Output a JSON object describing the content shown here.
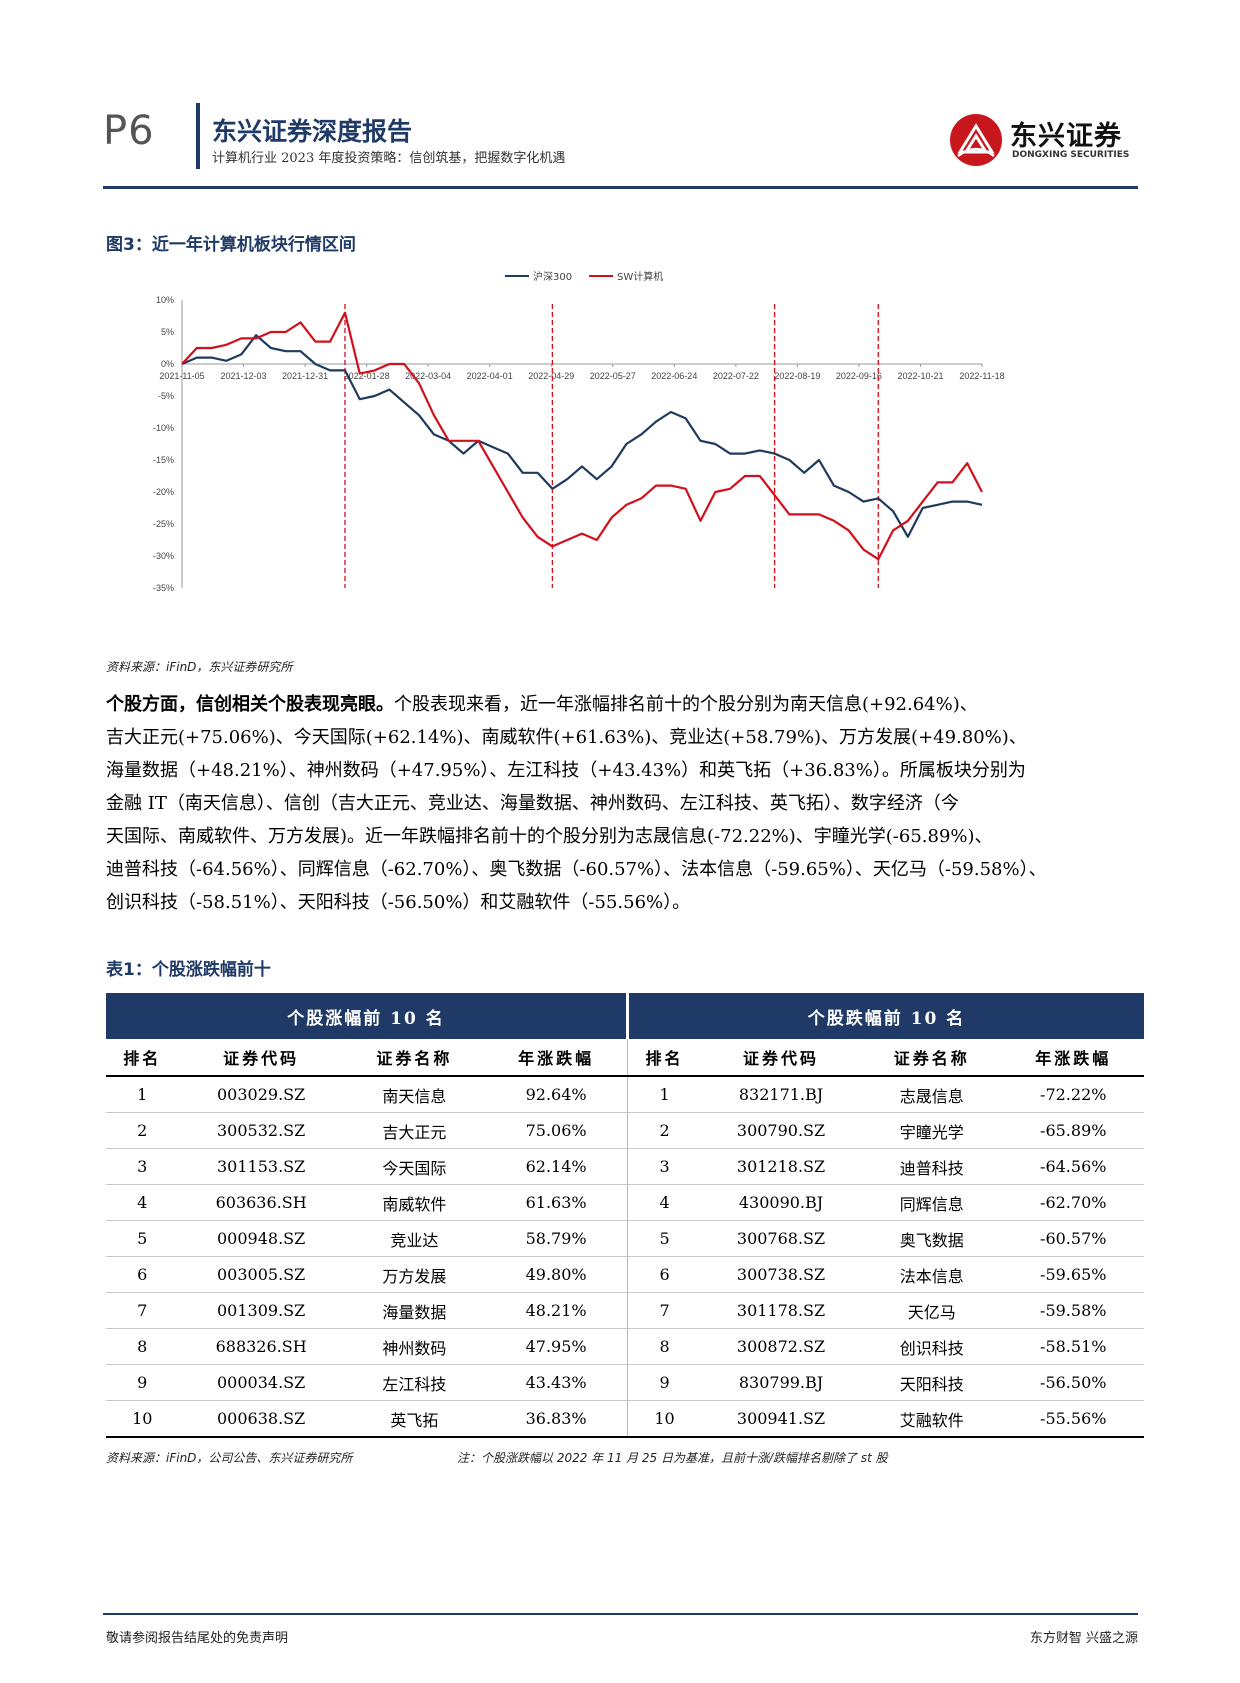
{
  "header": {
    "page_num": "P6",
    "title": "东兴证券深度报告",
    "subtitle": "计算机行业 2023 年度投资策略：信创筑基，把握数字化机遇",
    "logo_text": "东兴证券",
    "logo_en": "DONGXING SECURITIES",
    "brand_color": "#1f3a66",
    "logo_color": "#c8161d"
  },
  "figure": {
    "caption": "图3：近一年计算机板块行情区间",
    "source": "资料来源：iFinD，东兴证券研究所"
  },
  "chart_data": {
    "type": "line",
    "legend_position": "top-center",
    "series": [
      {
        "name": "沪深300",
        "color": "#1f3a5f",
        "values": [
          0,
          1,
          1,
          0.5,
          1.5,
          4.5,
          2.5,
          2,
          2,
          0,
          -1,
          -1,
          -5.5,
          -5,
          -4,
          -6,
          -8,
          -11,
          -12,
          -14,
          -12,
          -13,
          -14,
          -17,
          -17,
          -19.5,
          -18,
          -16,
          -18,
          -16,
          -12.5,
          -11,
          -9,
          -7.5,
          -8.5,
          -12,
          -12.5,
          -14,
          -14,
          -13.5,
          -14,
          -15,
          -17,
          -15,
          -19,
          -20,
          -21.5,
          -21,
          -23,
          -27,
          -22.5,
          -22,
          -21.5,
          -21.5,
          -22
        ]
      },
      {
        "name": "SW计算机",
        "color": "#d0101b",
        "values": [
          0,
          2.5,
          2.5,
          3,
          4,
          4,
          5,
          5,
          6.5,
          3.5,
          3.5,
          8,
          -1.5,
          -1,
          0,
          0,
          -3,
          -8,
          -12,
          -12,
          -12,
          -16,
          -20,
          -24,
          -27,
          -28.5,
          -27.5,
          -26.5,
          -27.5,
          -24,
          -22,
          -21,
          -19,
          -19,
          -19.5,
          -24.5,
          -20,
          -19.5,
          -17.5,
          -17.5,
          -20.5,
          -23.5,
          -23.5,
          -23.5,
          -24.5,
          -26,
          -29,
          -30.5,
          -26,
          -24.5,
          -21.5,
          -18.5,
          -18.5,
          -15.5,
          -20
        ]
      }
    ],
    "x_tick_labels": [
      "2021-11-05",
      "2021-12-03",
      "2021-12-31",
      "2022-01-28",
      "2022-03-04",
      "2022-04-01",
      "2022-04-29",
      "2022-05-27",
      "2022-06-24",
      "2022-07-22",
      "2022-08-19",
      "2022-09-16",
      "2022-10-21",
      "2022-11-18"
    ],
    "y_tick_labels": [
      "10%",
      "5%",
      "0%",
      "-5%",
      "-10%",
      "-15%",
      "-20%",
      "-25%",
      "-30%",
      "-35%"
    ],
    "ylim": [
      -35,
      10
    ],
    "marker_lines_at_point_index": [
      11,
      25,
      40,
      47
    ],
    "marker_line_color": "#d0101b",
    "grid": false
  },
  "body": {
    "lead": "个股方面，信创相关个股表现亮眼。",
    "lines": [
      "个股表现来看，近一年涨幅排名前十的个股分别为南天信息(+92.64%)、",
      "吉大正元(+75.06%)、今天国际(+62.14%)、南威软件(+61.63%)、竞业达(+58.79%)、万方发展(+49.80%)、",
      "海量数据（+48.21%）、神州数码（+47.95%）、左江科技（+43.43%）和英飞拓（+36.83%）。所属板块分别为",
      "金融 IT（南天信息）、信创（吉大正元、竞业达、海量数据、神州数码、左江科技、英飞拓）、数字经济（今",
      "天国际、南威软件、万方发展)。近一年跌幅排名前十的个股分别为志晟信息(-72.22%)、宇瞳光学(-65.89%)、",
      "迪普科技（-64.56%）、同辉信息（-62.70%）、奥飞数据（-60.57%）、法本信息（-59.65%）、天亿马（-59.58%）、",
      "创识科技（-58.51%）、天阳科技（-56.50%）和艾融软件（-55.56%）。"
    ]
  },
  "table": {
    "caption": "表1：个股涨跌幅前十",
    "group_left": "个股涨幅前 10 名",
    "group_right": "个股跌幅前 10 名",
    "columns": [
      "排名",
      "证券代码",
      "证券名称",
      "年涨跌幅",
      "排名",
      "证券代码",
      "证券名称",
      "年涨跌幅"
    ],
    "rows": [
      [
        "1",
        "003029.SZ",
        "南天信息",
        "92.64%",
        "1",
        "832171.BJ",
        "志晟信息",
        "-72.22%"
      ],
      [
        "2",
        "300532.SZ",
        "吉大正元",
        "75.06%",
        "2",
        "300790.SZ",
        "宇瞳光学",
        "-65.89%"
      ],
      [
        "3",
        "301153.SZ",
        "今天国际",
        "62.14%",
        "3",
        "301218.SZ",
        "迪普科技",
        "-64.56%"
      ],
      [
        "4",
        "603636.SH",
        "南威软件",
        "61.63%",
        "4",
        "430090.BJ",
        "同辉信息",
        "-62.70%"
      ],
      [
        "5",
        "000948.SZ",
        "竞业达",
        "58.79%",
        "5",
        "300768.SZ",
        "奥飞数据",
        "-60.57%"
      ],
      [
        "6",
        "003005.SZ",
        "万方发展",
        "49.80%",
        "6",
        "300738.SZ",
        "法本信息",
        "-59.65%"
      ],
      [
        "7",
        "001309.SZ",
        "海量数据",
        "48.21%",
        "7",
        "301178.SZ",
        "天亿马",
        "-59.58%"
      ],
      [
        "8",
        "688326.SH",
        "神州数码",
        "47.95%",
        "8",
        "300872.SZ",
        "创识科技",
        "-58.51%"
      ],
      [
        "9",
        "000034.SZ",
        "左江科技",
        "43.43%",
        "9",
        "830799.BJ",
        "天阳科技",
        "-56.50%"
      ],
      [
        "10",
        "000638.SZ",
        "英飞拓",
        "36.83%",
        "10",
        "300941.SZ",
        "艾融软件",
        "-55.56%"
      ]
    ],
    "source": "资料来源：iFinD，公司公告、东兴证券研究所",
    "note": "注：个股涨跌幅以 2022 年 11 月 25 日为基准，且前十涨/跌幅排名剔除了 st 股"
  },
  "footer": {
    "left": "敬请参阅报告结尾处的免责声明",
    "right": "东方财智 兴盛之源"
  }
}
